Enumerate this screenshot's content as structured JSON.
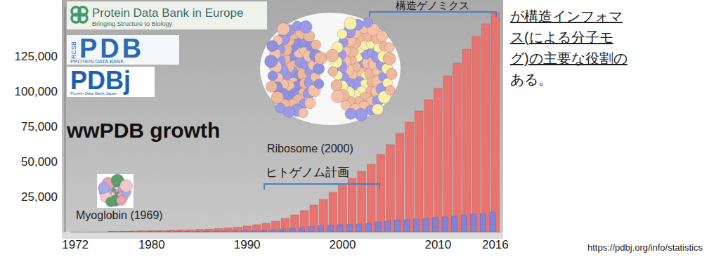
{
  "chart_data": {
    "type": "bar",
    "title": "wwPDB growth",
    "annotations": [
      "Ribosome (2000)",
      "ヒトゲノム計画",
      "Myoglobin (1969)",
      "構造ゲノミクス"
    ],
    "categories": [
      "1972",
      null,
      null,
      null,
      null,
      null,
      null,
      null,
      "1980",
      null,
      null,
      null,
      null,
      null,
      null,
      null,
      null,
      null,
      "1990",
      null,
      null,
      null,
      null,
      null,
      null,
      null,
      null,
      null,
      "2000",
      null,
      null,
      null,
      null,
      null,
      null,
      null,
      null,
      null,
      "2010",
      null,
      null,
      null,
      null,
      null,
      "2016"
    ],
    "series": [
      {
        "color": "#e8736f",
        "values": [
          null,
          null,
          null,
          null,
          300,
          400,
          500,
          600,
          700,
          800,
          1000,
          1200,
          1400,
          1600,
          1900,
          2200,
          2600,
          3200,
          4000,
          5000,
          6000,
          7500,
          9500,
          12000,
          15000,
          19000,
          23000,
          28000,
          33000,
          38000,
          43000,
          48000,
          55000,
          62000,
          70000,
          78000,
          86000,
          94000,
          102000,
          111000,
          120000,
          130000,
          139000,
          148000,
          156000
        ]
      },
      {
        "color": "#7d84dc",
        "values": [
          null,
          null,
          null,
          null,
          100,
          100,
          150,
          150,
          200,
          200,
          250,
          300,
          300,
          350,
          400,
          450,
          500,
          600,
          900,
          1000,
          1200,
          1600,
          2000,
          2500,
          3000,
          3600,
          4200,
          4800,
          5000,
          5200,
          5500,
          6000,
          7000,
          7500,
          8200,
          8500,
          9000,
          9500,
          10000,
          10500,
          11000,
          12000,
          12500,
          13000,
          14000
        ]
      }
    ],
    "ylim": [
      0,
      160000
    ],
    "yticks": [
      {
        "value": 25000,
        "label": "25,000"
      },
      {
        "value": 50000,
        "label": "50,000"
      },
      {
        "value": 75000,
        "label": "75,000"
      },
      {
        "value": 100000,
        "label": "100,000"
      },
      {
        "value": 125000,
        "label": "125,000"
      }
    ],
    "grid": false
  },
  "logos": {
    "pdbe": [
      "Protein Data Bank in Europe",
      "Bringing Structure to Biology"
    ],
    "rcsb": [
      "RCSB",
      "PDB",
      "PROTEIN DATA BANK"
    ],
    "pdbj": [
      "PDBj",
      "Protein Data Bank Japan"
    ]
  },
  "note": [
    "が構造インフォマ",
    "ス(による分子モ",
    "グ)の主要な役割の",
    "ある。"
  ],
  "source": "https://pdbj.org/info/statistics"
}
